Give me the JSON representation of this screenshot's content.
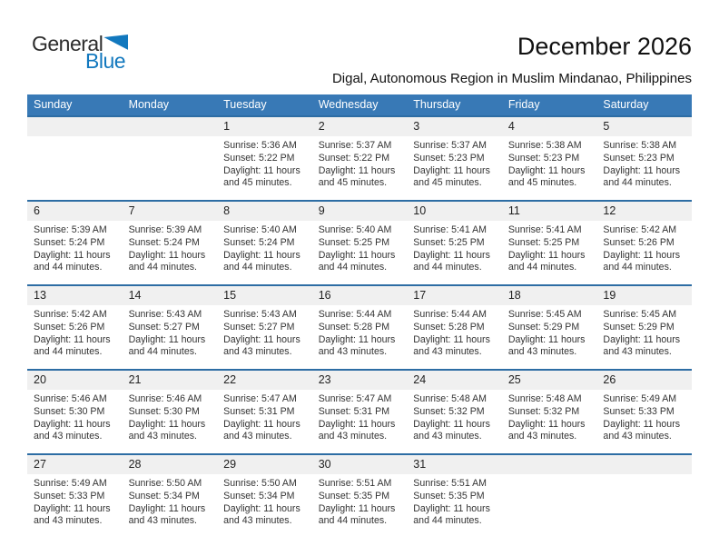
{
  "logo": {
    "general": "General",
    "blue": "Blue"
  },
  "header": {
    "title": "December 2026",
    "subtitle": "Digal, Autonomous Region in Muslim Mindanao, Philippines"
  },
  "colors": {
    "header_bar_blue": "#3879b6",
    "week_separator_blue": "#2d6da4",
    "day_number_band_gray": "#f0f0f0",
    "logo_blue": "#1278be",
    "text_dark": "#333333"
  },
  "calendar": {
    "weekday_headers": [
      "Sunday",
      "Monday",
      "Tuesday",
      "Wednesday",
      "Thursday",
      "Friday",
      "Saturday"
    ],
    "weeks": [
      {
        "cells": [
          null,
          null,
          {
            "day": "1",
            "sunrise": "Sunrise: 5:36 AM",
            "sunset": "Sunset: 5:22 PM",
            "daylight_line1": "Daylight: 11 hours",
            "daylight_line2": "and 45 minutes."
          },
          {
            "day": "2",
            "sunrise": "Sunrise: 5:37 AM",
            "sunset": "Sunset: 5:22 PM",
            "daylight_line1": "Daylight: 11 hours",
            "daylight_line2": "and 45 minutes."
          },
          {
            "day": "3",
            "sunrise": "Sunrise: 5:37 AM",
            "sunset": "Sunset: 5:23 PM",
            "daylight_line1": "Daylight: 11 hours",
            "daylight_line2": "and 45 minutes."
          },
          {
            "day": "4",
            "sunrise": "Sunrise: 5:38 AM",
            "sunset": "Sunset: 5:23 PM",
            "daylight_line1": "Daylight: 11 hours",
            "daylight_line2": "and 45 minutes."
          },
          {
            "day": "5",
            "sunrise": "Sunrise: 5:38 AM",
            "sunset": "Sunset: 5:23 PM",
            "daylight_line1": "Daylight: 11 hours",
            "daylight_line2": "and 44 minutes."
          }
        ]
      },
      {
        "cells": [
          {
            "day": "6",
            "sunrise": "Sunrise: 5:39 AM",
            "sunset": "Sunset: 5:24 PM",
            "daylight_line1": "Daylight: 11 hours",
            "daylight_line2": "and 44 minutes."
          },
          {
            "day": "7",
            "sunrise": "Sunrise: 5:39 AM",
            "sunset": "Sunset: 5:24 PM",
            "daylight_line1": "Daylight: 11 hours",
            "daylight_line2": "and 44 minutes."
          },
          {
            "day": "8",
            "sunrise": "Sunrise: 5:40 AM",
            "sunset": "Sunset: 5:24 PM",
            "daylight_line1": "Daylight: 11 hours",
            "daylight_line2": "and 44 minutes."
          },
          {
            "day": "9",
            "sunrise": "Sunrise: 5:40 AM",
            "sunset": "Sunset: 5:25 PM",
            "daylight_line1": "Daylight: 11 hours",
            "daylight_line2": "and 44 minutes."
          },
          {
            "day": "10",
            "sunrise": "Sunrise: 5:41 AM",
            "sunset": "Sunset: 5:25 PM",
            "daylight_line1": "Daylight: 11 hours",
            "daylight_line2": "and 44 minutes."
          },
          {
            "day": "11",
            "sunrise": "Sunrise: 5:41 AM",
            "sunset": "Sunset: 5:25 PM",
            "daylight_line1": "Daylight: 11 hours",
            "daylight_line2": "and 44 minutes."
          },
          {
            "day": "12",
            "sunrise": "Sunrise: 5:42 AM",
            "sunset": "Sunset: 5:26 PM",
            "daylight_line1": "Daylight: 11 hours",
            "daylight_line2": "and 44 minutes."
          }
        ]
      },
      {
        "cells": [
          {
            "day": "13",
            "sunrise": "Sunrise: 5:42 AM",
            "sunset": "Sunset: 5:26 PM",
            "daylight_line1": "Daylight: 11 hours",
            "daylight_line2": "and 44 minutes."
          },
          {
            "day": "14",
            "sunrise": "Sunrise: 5:43 AM",
            "sunset": "Sunset: 5:27 PM",
            "daylight_line1": "Daylight: 11 hours",
            "daylight_line2": "and 44 minutes."
          },
          {
            "day": "15",
            "sunrise": "Sunrise: 5:43 AM",
            "sunset": "Sunset: 5:27 PM",
            "daylight_line1": "Daylight: 11 hours",
            "daylight_line2": "and 43 minutes."
          },
          {
            "day": "16",
            "sunrise": "Sunrise: 5:44 AM",
            "sunset": "Sunset: 5:28 PM",
            "daylight_line1": "Daylight: 11 hours",
            "daylight_line2": "and 43 minutes."
          },
          {
            "day": "17",
            "sunrise": "Sunrise: 5:44 AM",
            "sunset": "Sunset: 5:28 PM",
            "daylight_line1": "Daylight: 11 hours",
            "daylight_line2": "and 43 minutes."
          },
          {
            "day": "18",
            "sunrise": "Sunrise: 5:45 AM",
            "sunset": "Sunset: 5:29 PM",
            "daylight_line1": "Daylight: 11 hours",
            "daylight_line2": "and 43 minutes."
          },
          {
            "day": "19",
            "sunrise": "Sunrise: 5:45 AM",
            "sunset": "Sunset: 5:29 PM",
            "daylight_line1": "Daylight: 11 hours",
            "daylight_line2": "and 43 minutes."
          }
        ]
      },
      {
        "cells": [
          {
            "day": "20",
            "sunrise": "Sunrise: 5:46 AM",
            "sunset": "Sunset: 5:30 PM",
            "daylight_line1": "Daylight: 11 hours",
            "daylight_line2": "and 43 minutes."
          },
          {
            "day": "21",
            "sunrise": "Sunrise: 5:46 AM",
            "sunset": "Sunset: 5:30 PM",
            "daylight_line1": "Daylight: 11 hours",
            "daylight_line2": "and 43 minutes."
          },
          {
            "day": "22",
            "sunrise": "Sunrise: 5:47 AM",
            "sunset": "Sunset: 5:31 PM",
            "daylight_line1": "Daylight: 11 hours",
            "daylight_line2": "and 43 minutes."
          },
          {
            "day": "23",
            "sunrise": "Sunrise: 5:47 AM",
            "sunset": "Sunset: 5:31 PM",
            "daylight_line1": "Daylight: 11 hours",
            "daylight_line2": "and 43 minutes."
          },
          {
            "day": "24",
            "sunrise": "Sunrise: 5:48 AM",
            "sunset": "Sunset: 5:32 PM",
            "daylight_line1": "Daylight: 11 hours",
            "daylight_line2": "and 43 minutes."
          },
          {
            "day": "25",
            "sunrise": "Sunrise: 5:48 AM",
            "sunset": "Sunset: 5:32 PM",
            "daylight_line1": "Daylight: 11 hours",
            "daylight_line2": "and 43 minutes."
          },
          {
            "day": "26",
            "sunrise": "Sunrise: 5:49 AM",
            "sunset": "Sunset: 5:33 PM",
            "daylight_line1": "Daylight: 11 hours",
            "daylight_line2": "and 43 minutes."
          }
        ]
      },
      {
        "cells": [
          {
            "day": "27",
            "sunrise": "Sunrise: 5:49 AM",
            "sunset": "Sunset: 5:33 PM",
            "daylight_line1": "Daylight: 11 hours",
            "daylight_line2": "and 43 minutes."
          },
          {
            "day": "28",
            "sunrise": "Sunrise: 5:50 AM",
            "sunset": "Sunset: 5:34 PM",
            "daylight_line1": "Daylight: 11 hours",
            "daylight_line2": "and 43 minutes."
          },
          {
            "day": "29",
            "sunrise": "Sunrise: 5:50 AM",
            "sunset": "Sunset: 5:34 PM",
            "daylight_line1": "Daylight: 11 hours",
            "daylight_line2": "and 43 minutes."
          },
          {
            "day": "30",
            "sunrise": "Sunrise: 5:51 AM",
            "sunset": "Sunset: 5:35 PM",
            "daylight_line1": "Daylight: 11 hours",
            "daylight_line2": "and 44 minutes."
          },
          {
            "day": "31",
            "sunrise": "Sunrise: 5:51 AM",
            "sunset": "Sunset: 5:35 PM",
            "daylight_line1": "Daylight: 11 hours",
            "daylight_line2": "and 44 minutes."
          },
          null,
          null
        ]
      }
    ]
  }
}
